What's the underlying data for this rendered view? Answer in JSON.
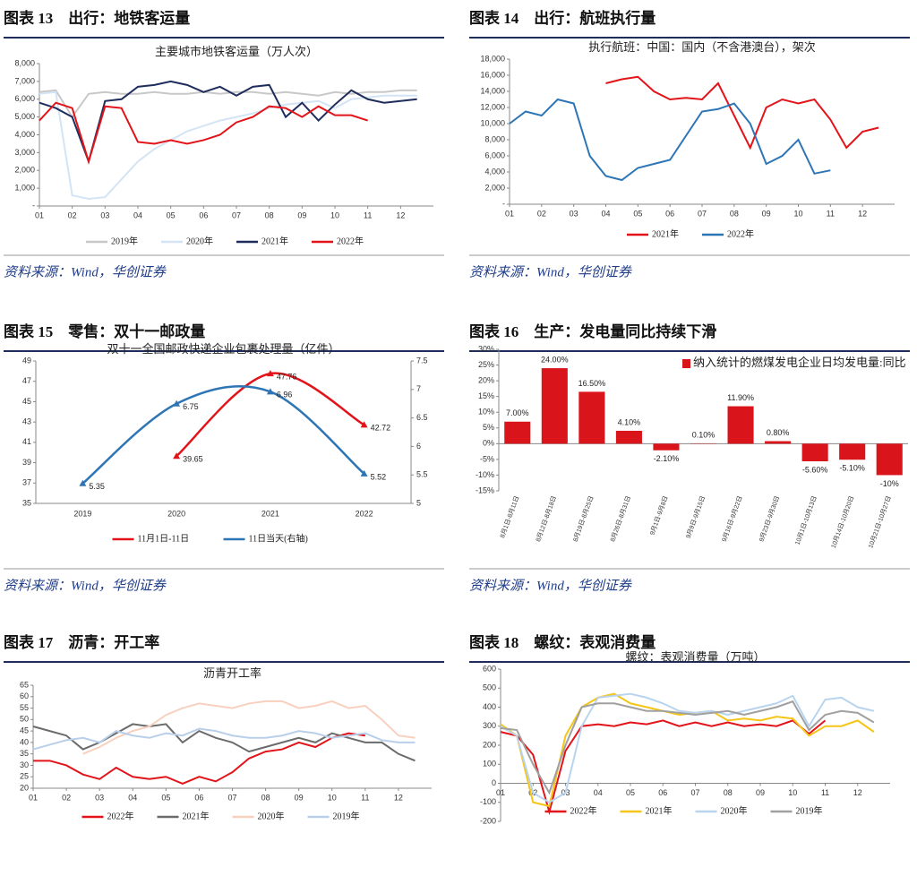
{
  "panels": [
    {
      "heading": "图表 13　出行：地铁客运量",
      "source": "资料来源：Wind，华创证券"
    },
    {
      "heading": "图表 14　出行：航班执行量",
      "source": "资料来源：Wind，华创证券"
    },
    {
      "heading": "图表 15　零售：双十一邮政量",
      "source": "资料来源：Wind，华创证券"
    },
    {
      "heading": "图表 16　生产：发电量同比持续下滑",
      "source": "资料来源：Wind，华创证券"
    },
    {
      "heading": "图表 17　沥青：开工率",
      "source": "资料来源：Wind，华创证券"
    },
    {
      "heading": "图表 18　螺纹：表观消费量",
      "source": "资料来源：Wind，华创证券"
    }
  ],
  "chart_data": [
    {
      "type": "line",
      "title": "主要城市地铁客运量（万人次）",
      "x": [
        1,
        1.5,
        2,
        2.5,
        3,
        3.5,
        4,
        4.5,
        5,
        5.5,
        6,
        6.5,
        7,
        7.5,
        8,
        8.5,
        9,
        9.5,
        10,
        10.5,
        11,
        11.5,
        12,
        12.5
      ],
      "xlim": [
        1,
        13
      ],
      "xticks": [
        {
          "value": 1,
          "label": "01"
        },
        {
          "value": 2,
          "label": "02"
        },
        {
          "value": 3,
          "label": "03"
        },
        {
          "value": 4,
          "label": "04"
        },
        {
          "value": 5,
          "label": "05"
        },
        {
          "value": 6,
          "label": "06"
        },
        {
          "value": 7,
          "label": "07"
        },
        {
          "value": 8,
          "label": "08"
        },
        {
          "value": 9,
          "label": "09"
        },
        {
          "value": 10,
          "label": "10"
        },
        {
          "value": 11,
          "label": "11"
        },
        {
          "value": 12,
          "label": "12"
        }
      ],
      "ylim": [
        0,
        8000
      ],
      "yticks": [
        {
          "value": 0,
          "label": "-"
        },
        {
          "value": 1000,
          "label": "1,000"
        },
        {
          "value": 2000,
          "label": "2,000"
        },
        {
          "value": 3000,
          "label": "3,000"
        },
        {
          "value": 4000,
          "label": "4,000"
        },
        {
          "value": 5000,
          "label": "5,000"
        },
        {
          "value": 6000,
          "label": "6,000"
        },
        {
          "value": 7000,
          "label": "7,000"
        },
        {
          "value": 8000,
          "label": "8,000"
        }
      ],
      "grid": false,
      "legend": "bottom",
      "series": [
        {
          "name": "2019年",
          "color": "#c8c8c8",
          "values": [
            6400,
            6500,
            5000,
            6300,
            6400,
            6300,
            6300,
            6400,
            6300,
            6300,
            6400,
            6300,
            6400,
            6400,
            6300,
            6400,
            6300,
            6200,
            6400,
            6300,
            6400,
            6400,
            6500,
            6500
          ]
        },
        {
          "name": "2020年",
          "color": "#d3e4f5",
          "values": [
            6300,
            6400,
            600,
            400,
            500,
            1500,
            2500,
            3200,
            3700,
            4200,
            4500,
            4800,
            5000,
            5200,
            5500,
            5700,
            5800,
            5900,
            5500,
            6000,
            6100,
            6200,
            6200,
            6200
          ]
        },
        {
          "name": "2021年",
          "color": "#1f2d5c",
          "values": [
            5800,
            5500,
            5000,
            2500,
            5900,
            6000,
            6700,
            6800,
            7000,
            6800,
            6400,
            6700,
            6200,
            6700,
            6800,
            5000,
            5800,
            4800,
            5700,
            6500,
            6000,
            5800,
            5900,
            6000
          ]
        },
        {
          "name": "2022年",
          "color": "#e2141a",
          "values": [
            4800,
            5800,
            5500,
            2500,
            5600,
            5500,
            3600,
            3500,
            3700,
            3500,
            3700,
            4000,
            4700,
            5000,
            5600,
            5500,
            5000,
            5600,
            5100,
            5100,
            4800,
            null,
            null,
            null
          ]
        }
      ]
    },
    {
      "type": "line",
      "title": "执行航班：中国：国内（不含港澳台），架次",
      "x": [
        1,
        1.5,
        2,
        2.5,
        3,
        3.5,
        4,
        4.5,
        5,
        5.5,
        6,
        6.5,
        7,
        7.5,
        8,
        8.5,
        9,
        9.5,
        10,
        10.5,
        11,
        11.5,
        12,
        12.5
      ],
      "xlim": [
        1,
        13
      ],
      "xticks": [
        {
          "value": 1,
          "label": "01"
        },
        {
          "value": 2,
          "label": "02"
        },
        {
          "value": 3,
          "label": "03"
        },
        {
          "value": 4,
          "label": "04"
        },
        {
          "value": 5,
          "label": "05"
        },
        {
          "value": 6,
          "label": "06"
        },
        {
          "value": 7,
          "label": "07"
        },
        {
          "value": 8,
          "label": "08"
        },
        {
          "value": 9,
          "label": "09"
        },
        {
          "value": 10,
          "label": "10"
        },
        {
          "value": 11,
          "label": "11"
        },
        {
          "value": 12,
          "label": "12"
        }
      ],
      "ylim": [
        0,
        18000
      ],
      "yticks": [
        {
          "value": 0,
          "label": "-"
        },
        {
          "value": 2000,
          "label": "2,000"
        },
        {
          "value": 4000,
          "label": "4,000"
        },
        {
          "value": 6000,
          "label": "6,000"
        },
        {
          "value": 8000,
          "label": "8,000"
        },
        {
          "value": 10000,
          "label": "10,000"
        },
        {
          "value": 12000,
          "label": "12,000"
        },
        {
          "value": 14000,
          "label": "14,000"
        },
        {
          "value": 16000,
          "label": "16,000"
        },
        {
          "value": 18000,
          "label": "18,000"
        }
      ],
      "grid": false,
      "legend": "bottom",
      "series": [
        {
          "name": "2021年",
          "color": "#e2141a",
          "values": [
            null,
            null,
            null,
            null,
            null,
            null,
            15000,
            15500,
            15800,
            14000,
            13000,
            13200,
            13000,
            15000,
            11000,
            7000,
            12000,
            13000,
            12500,
            13000,
            10500,
            7000,
            9000,
            9500
          ]
        },
        {
          "name": "2022年",
          "color": "#2e75b6",
          "values": [
            10000,
            11500,
            11000,
            13000,
            12500,
            6000,
            3500,
            3000,
            4500,
            5000,
            5500,
            8500,
            11500,
            11800,
            12500,
            10000,
            5000,
            6000,
            8000,
            3800,
            4200,
            null,
            null,
            null
          ]
        }
      ]
    },
    {
      "type": "curve",
      "title": "双十一全国邮政快递企业包裹处理量（亿件）",
      "categories": [
        "2019",
        "2020",
        "2021",
        "2022"
      ],
      "ylim": [
        35,
        49
      ],
      "yticks": [
        35,
        37,
        39,
        41,
        43,
        45,
        47,
        49
      ],
      "y2lim": [
        5,
        7.5
      ],
      "y2ticks": [
        5,
        5.5,
        6,
        6.5,
        7,
        7.5
      ],
      "grid": false,
      "legend": "bottom",
      "data_labels": true,
      "series": [
        {
          "name": "11月1日-11日",
          "color": "#e2141a",
          "values": [
            null,
            39.65,
            47.76,
            42.72
          ]
        },
        {
          "name": "11日当天(右轴)",
          "color": "#2e75b6",
          "axis": "y2",
          "values": [
            5.35,
            6.75,
            6.96,
            5.52
          ]
        }
      ]
    },
    {
      "type": "bar",
      "title": null,
      "categories": [
        "8月1日-8月11日",
        "8月12日-8月18日",
        "8月19日-8月25日",
        "8月26日-8月31日",
        "9月1日-9月8日",
        "9月9日-9月15日",
        "9月16日-9月22日",
        "9月23日-9月30日",
        "10月1日-10月13日",
        "10月14日-10月20日",
        "10月21日-10月27日"
      ],
      "ylim": [
        -15,
        30
      ],
      "yticks": [
        {
          "value": -15,
          "label": "-15%"
        },
        {
          "value": -10,
          "label": "-10%"
        },
        {
          "value": -5,
          "label": "-5%"
        },
        {
          "value": 0,
          "label": "0%"
        },
        {
          "value": 5,
          "label": "5%"
        },
        {
          "value": 10,
          "label": "10%"
        },
        {
          "value": 15,
          "label": "15%"
        },
        {
          "value": 20,
          "label": "20%"
        },
        {
          "value": 25,
          "label": "25%"
        },
        {
          "value": 30,
          "label": "30%"
        }
      ],
      "grid": false,
      "legend": "top-right",
      "series": [
        {
          "name": "纳入统计的燃煤发电企业日均发电量:同比",
          "color": "#d9141b",
          "values": [
            7,
            24,
            16.5,
            4.1,
            -2.1,
            0.1,
            11.9,
            0.8,
            -5.6,
            -5.1,
            -10
          ],
          "value_labels": [
            "7.00%",
            "24.00%",
            "16.50%",
            "4.10%",
            "-2.10%",
            "0.10%",
            "11.90%",
            "0.80%",
            "-5.60%",
            "-5.10%",
            "-10%"
          ]
        }
      ]
    },
    {
      "type": "line",
      "title": "沥青开工率",
      "x": [
        1,
        1.5,
        2,
        2.5,
        3,
        3.5,
        4,
        4.5,
        5,
        5.5,
        6,
        6.5,
        7,
        7.5,
        8,
        8.5,
        9,
        9.5,
        10,
        10.5,
        11,
        11.5,
        12,
        12.5
      ],
      "xlim": [
        1,
        13
      ],
      "xticks": [
        {
          "value": 1,
          "label": "01"
        },
        {
          "value": 2,
          "label": "02"
        },
        {
          "value": 3,
          "label": "03"
        },
        {
          "value": 4,
          "label": "04"
        },
        {
          "value": 5,
          "label": "05"
        },
        {
          "value": 6,
          "label": "06"
        },
        {
          "value": 7,
          "label": "07"
        },
        {
          "value": 8,
          "label": "08"
        },
        {
          "value": 9,
          "label": "09"
        },
        {
          "value": 10,
          "label": "10"
        },
        {
          "value": 11,
          "label": "11"
        },
        {
          "value": 12,
          "label": "12"
        }
      ],
      "ylim": [
        20,
        65
      ],
      "yticks": [
        20,
        25,
        30,
        35,
        40,
        45,
        50,
        55,
        60,
        65
      ],
      "grid": false,
      "legend": "bottom",
      "series": [
        {
          "name": "2022年",
          "color": "#e2141a",
          "values": [
            32,
            32,
            30,
            26,
            24,
            29,
            25,
            24,
            25,
            22,
            25,
            23,
            27,
            33,
            36,
            37,
            40,
            38,
            42,
            44,
            43,
            null,
            null,
            null
          ]
        },
        {
          "name": "2021年",
          "color": "#6b6b6b",
          "values": [
            47,
            45,
            43,
            37,
            40,
            44,
            48,
            47,
            48,
            40,
            45,
            42,
            40,
            36,
            38,
            40,
            42,
            40,
            44,
            42,
            40,
            40,
            35,
            32
          ]
        },
        {
          "name": "2020年",
          "color": "#f8d0bf",
          "values": [
            null,
            null,
            null,
            35,
            38,
            42,
            45,
            47,
            52,
            55,
            57,
            56,
            55,
            57,
            58,
            58,
            55,
            56,
            58,
            55,
            56,
            50,
            43,
            42
          ]
        },
        {
          "name": "2019年",
          "color": "#b9cfe9",
          "values": [
            37,
            39,
            41,
            42,
            40,
            45,
            43,
            42,
            44,
            43,
            46,
            45,
            43,
            42,
            42,
            43,
            45,
            44,
            42,
            43,
            44,
            41,
            40,
            40
          ]
        }
      ]
    },
    {
      "type": "line",
      "title": "螺纹：表观消费量（万吨）",
      "x": [
        1,
        1.5,
        2,
        2.5,
        3,
        3.5,
        4,
        4.5,
        5,
        5.5,
        6,
        6.5,
        7,
        7.5,
        8,
        8.5,
        9,
        9.5,
        10,
        10.5,
        11,
        11.5,
        12,
        12.5
      ],
      "xlim": [
        1,
        13
      ],
      "xticks": [
        {
          "value": 1,
          "label": "01"
        },
        {
          "value": 2,
          "label": "02"
        },
        {
          "value": 3,
          "label": "03"
        },
        {
          "value": 4,
          "label": "04"
        },
        {
          "value": 5,
          "label": "05"
        },
        {
          "value": 6,
          "label": "06"
        },
        {
          "value": 7,
          "label": "07"
        },
        {
          "value": 8,
          "label": "08"
        },
        {
          "value": 9,
          "label": "09"
        },
        {
          "value": 10,
          "label": "10"
        },
        {
          "value": 11,
          "label": "11"
        },
        {
          "value": 12,
          "label": "12"
        }
      ],
      "ylim": [
        -200,
        600
      ],
      "yticks": [
        -200,
        -100,
        0,
        100,
        200,
        300,
        400,
        500,
        600
      ],
      "grid": false,
      "legend": "bottom",
      "series": [
        {
          "name": "2022年",
          "color": "#e2141a",
          "values": [
            270,
            250,
            150,
            -150,
            170,
            300,
            310,
            300,
            320,
            310,
            330,
            300,
            320,
            300,
            320,
            300,
            310,
            300,
            330,
            260,
            330,
            null,
            null,
            null
          ]
        },
        {
          "name": "2021年",
          "color": "#f5c518",
          "values": [
            310,
            250,
            -100,
            -120,
            250,
            400,
            450,
            470,
            420,
            400,
            380,
            360,
            370,
            380,
            330,
            340,
            330,
            350,
            340,
            250,
            300,
            300,
            330,
            270
          ]
        },
        {
          "name": "2020年",
          "color": "#b8d4ee",
          "values": [
            300,
            250,
            -50,
            -100,
            -50,
            300,
            450,
            460,
            470,
            450,
            420,
            380,
            370,
            380,
            360,
            380,
            400,
            420,
            460,
            300,
            440,
            450,
            400,
            380
          ]
        },
        {
          "name": "2019年",
          "color": "#a0a0a0",
          "values": [
            290,
            280,
            100,
            -50,
            200,
            400,
            420,
            420,
            400,
            380,
            380,
            370,
            360,
            370,
            380,
            360,
            380,
            400,
            430,
            280,
            360,
            380,
            370,
            320
          ]
        }
      ]
    }
  ]
}
